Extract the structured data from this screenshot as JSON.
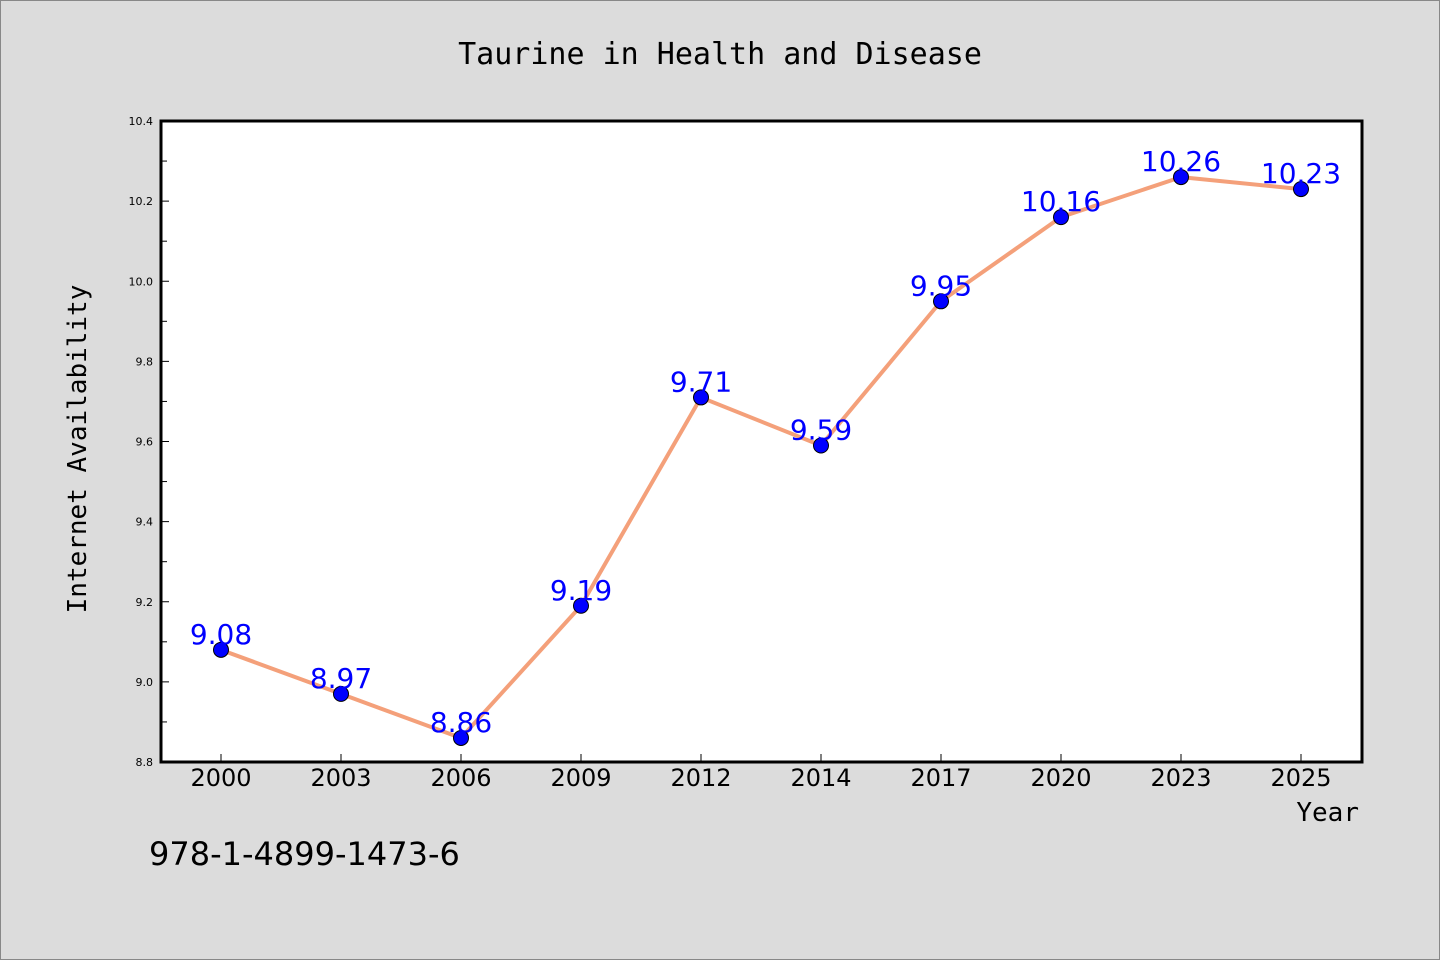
{
  "chart_data": {
    "type": "line",
    "title": "Taurine in Health and Disease",
    "xlabel": "Year",
    "ylabel": "Internet Availability",
    "categories": [
      "2000",
      "2003",
      "2006",
      "2009",
      "2012",
      "2014",
      "2017",
      "2020",
      "2023",
      "2025"
    ],
    "series": [
      {
        "values": [
          9.08,
          8.97,
          8.86,
          9.19,
          9.71,
          9.59,
          9.95,
          10.16,
          10.26,
          10.23
        ]
      }
    ],
    "data_labels": [
      "9.08",
      "8.97",
      "8.86",
      "9.19",
      "9.71",
      "9.59",
      "9.95",
      "10.16",
      "10.26",
      "10.23"
    ],
    "ylim": [
      8.8,
      10.4
    ],
    "yticks": [
      "8.8",
      "9.0",
      "9.2",
      "9.4",
      "9.6",
      "9.8",
      "10.0",
      "10.2",
      "10.4"
    ],
    "grid": false,
    "legend": "none",
    "colors": {
      "line": "#f4a07a",
      "marker": "#0000ff",
      "label": "#0000ff",
      "plot_background": "#ffffff",
      "figure_background": "#dcdcdc"
    }
  },
  "footer": {
    "isbn": "978-1-4899-1473-6"
  }
}
